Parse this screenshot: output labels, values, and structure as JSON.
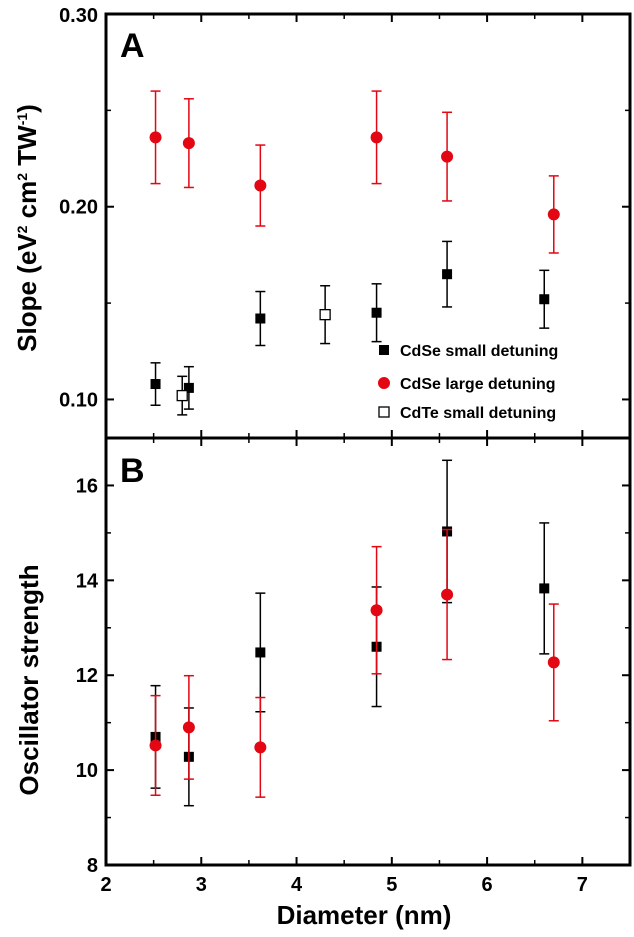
{
  "chart_data": [
    {
      "type": "scatter",
      "panel_label": "A",
      "ylabel": {
        "base": "Slope (eV",
        "sup1": "2",
        "mid": " cm",
        "sup2": "2",
        "mid2": " TW",
        "sup3": "-1",
        "end": ")"
      },
      "ylim": [
        0.08,
        0.3
      ],
      "xlim": [
        2,
        7.5
      ],
      "yticks": [
        0.1,
        0.2,
        0.3
      ],
      "ytick_labels": [
        "0.10",
        "0.20",
        "0.30"
      ],
      "grid": false,
      "legend_position": "bottom-right",
      "series": [
        {
          "name": "CdSe small detuning",
          "marker": "square-filled",
          "color": "#000000",
          "points": [
            {
              "x": 2.52,
              "y": 0.108,
              "err": 0.011
            },
            {
              "x": 2.87,
              "y": 0.106,
              "err": 0.011
            },
            {
              "x": 3.62,
              "y": 0.142,
              "err": 0.014
            },
            {
              "x": 4.84,
              "y": 0.145,
              "err": 0.015
            },
            {
              "x": 5.58,
              "y": 0.165,
              "err": 0.017
            },
            {
              "x": 6.6,
              "y": 0.152,
              "err": 0.015
            }
          ]
        },
        {
          "name": "CdSe large detuning",
          "marker": "circle-filled",
          "color": "#e30613",
          "points": [
            {
              "x": 2.52,
              "y": 0.236,
              "err": 0.024
            },
            {
              "x": 2.87,
              "y": 0.233,
              "err": 0.023
            },
            {
              "x": 3.62,
              "y": 0.211,
              "err": 0.021
            },
            {
              "x": 4.84,
              "y": 0.236,
              "err": 0.024
            },
            {
              "x": 5.58,
              "y": 0.226,
              "err": 0.023
            },
            {
              "x": 6.7,
              "y": 0.196,
              "err": 0.02
            }
          ]
        },
        {
          "name": "CdTe small detuning",
          "marker": "square-open",
          "color": "#000000",
          "points": [
            {
              "x": 2.8,
              "y": 0.102,
              "err": 0.01
            },
            {
              "x": 4.3,
              "y": 0.144,
              "err": 0.015
            }
          ]
        }
      ]
    },
    {
      "type": "scatter",
      "panel_label": "B",
      "ylabel": "Oscillator strength",
      "xlabel": "Diameter (nm)",
      "ylim": [
        8,
        17
      ],
      "xlim": [
        2,
        7.5
      ],
      "yticks": [
        8,
        10,
        12,
        14,
        16
      ],
      "ytick_labels": [
        "8",
        "10",
        "12",
        "14",
        "16"
      ],
      "xticks": [
        2,
        3,
        4,
        5,
        6,
        7
      ],
      "xtick_labels": [
        "2",
        "3",
        "4",
        "5",
        "6",
        "7"
      ],
      "grid": false,
      "series": [
        {
          "marker": "square-filled",
          "color": "#000000",
          "points": [
            {
              "x": 2.52,
              "y": 10.7,
              "err": 1.08
            },
            {
              "x": 2.87,
              "y": 10.28,
              "err": 1.03
            },
            {
              "x": 3.62,
              "y": 12.48,
              "err": 1.25
            },
            {
              "x": 4.84,
              "y": 12.6,
              "err": 1.26
            },
            {
              "x": 5.58,
              "y": 15.03,
              "err": 1.5
            },
            {
              "x": 6.6,
              "y": 13.83,
              "err": 1.38
            }
          ]
        },
        {
          "marker": "circle-filled",
          "color": "#e30613",
          "points": [
            {
              "x": 2.52,
              "y": 10.52,
              "err": 1.05
            },
            {
              "x": 2.87,
              "y": 10.9,
              "err": 1.09
            },
            {
              "x": 3.62,
              "y": 10.48,
              "err": 1.05
            },
            {
              "x": 4.84,
              "y": 13.37,
              "err": 1.34
            },
            {
              "x": 5.58,
              "y": 13.7,
              "err": 1.37
            },
            {
              "x": 6.7,
              "y": 12.27,
              "err": 1.23
            }
          ]
        }
      ]
    }
  ]
}
